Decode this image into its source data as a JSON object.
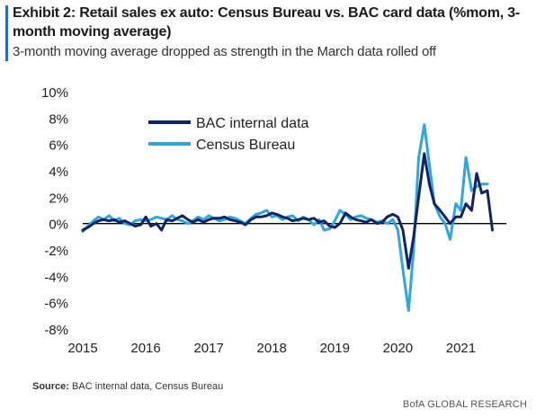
{
  "header": {
    "title": "Exhibit 2: Retail sales ex auto: Census Bureau vs. BAC card data (%mom, 3-month moving average)",
    "subtitle": "3-month moving average dropped as strength in the March data rolled off"
  },
  "footer": {
    "source_label": "Source:",
    "source_text": "BAC internal data, Census  Bureau",
    "brand": "BofA GLOBAL RESEARCH"
  },
  "colors": {
    "accent": "#1f6fd1",
    "bac": "#0d2566",
    "census": "#2fa6df"
  },
  "chart_data": {
    "type": "line",
    "ylim": [
      -8,
      10
    ],
    "yticks": [
      -8,
      -6,
      -4,
      -2,
      0,
      2,
      4,
      6,
      8,
      10
    ],
    "ytick_labels": [
      "-8%",
      "-6%",
      "-4%",
      "-2%",
      "0%",
      "2%",
      "4%",
      "6%",
      "8%",
      "10%"
    ],
    "xlim": [
      2015.0,
      2021.75
    ],
    "xticks": [
      2015,
      2016,
      2017,
      2018,
      2019,
      2020,
      2021
    ],
    "xtick_labels": [
      "2015",
      "2016",
      "2017",
      "2018",
      "2019",
      "2020",
      "2021"
    ],
    "legend_position": "top-left",
    "series": [
      {
        "name": "BAC internal data",
        "color": "#0d2566",
        "x": [
          2015.0,
          2015.08,
          2015.17,
          2015.25,
          2015.33,
          2015.42,
          2015.5,
          2015.58,
          2015.67,
          2015.75,
          2015.83,
          2015.92,
          2016.0,
          2016.08,
          2016.17,
          2016.25,
          2016.33,
          2016.42,
          2016.5,
          2016.58,
          2016.67,
          2016.75,
          2016.83,
          2016.92,
          2017.0,
          2017.08,
          2017.17,
          2017.25,
          2017.33,
          2017.42,
          2017.5,
          2017.58,
          2017.67,
          2017.75,
          2017.83,
          2017.92,
          2018.0,
          2018.08,
          2018.17,
          2018.25,
          2018.33,
          2018.42,
          2018.5,
          2018.58,
          2018.67,
          2018.75,
          2018.83,
          2018.92,
          2019.0,
          2019.08,
          2019.17,
          2019.25,
          2019.33,
          2019.42,
          2019.5,
          2019.58,
          2019.67,
          2019.75,
          2019.83,
          2019.92,
          2020.0,
          2020.08,
          2020.17,
          2020.25,
          2020.33,
          2020.42,
          2020.5,
          2020.58,
          2020.67,
          2020.75,
          2020.83,
          2020.92,
          2021.0,
          2021.08,
          2021.17,
          2021.25,
          2021.33,
          2021.42,
          2021.5
        ],
        "values": [
          -0.5,
          -0.3,
          0.0,
          0.2,
          0.3,
          0.2,
          0.3,
          0.1,
          0.2,
          0.0,
          -0.2,
          -0.1,
          0.5,
          -0.2,
          0.0,
          -0.5,
          0.3,
          0.2,
          0.4,
          0.6,
          0.3,
          0.1,
          0.3,
          0.1,
          0.3,
          0.4,
          0.4,
          0.5,
          0.3,
          0.2,
          0.1,
          -0.1,
          0.3,
          0.5,
          0.5,
          0.6,
          0.8,
          0.7,
          0.5,
          0.4,
          0.2,
          0.3,
          0.4,
          0.3,
          0.4,
          0.1,
          0.2,
          -0.2,
          -0.3,
          0.0,
          0.8,
          0.5,
          0.3,
          0.2,
          0.1,
          0.3,
          0.0,
          0.1,
          0.5,
          0.7,
          0.5,
          -0.5,
          -3.4,
          -1.0,
          2.0,
          5.3,
          3.0,
          1.5,
          1.0,
          0.5,
          0.0,
          0.5,
          0.5,
          1.5,
          1.0,
          3.8,
          2.3,
          2.5,
          -0.5
        ]
      },
      {
        "name": "Census Bureau",
        "color": "#2fa6df",
        "x": [
          2015.0,
          2015.08,
          2015.17,
          2015.25,
          2015.33,
          2015.42,
          2015.5,
          2015.58,
          2015.67,
          2015.75,
          2015.83,
          2015.92,
          2016.0,
          2016.08,
          2016.17,
          2016.25,
          2016.33,
          2016.42,
          2016.5,
          2016.58,
          2016.67,
          2016.75,
          2016.83,
          2016.92,
          2017.0,
          2017.08,
          2017.17,
          2017.25,
          2017.33,
          2017.42,
          2017.5,
          2017.58,
          2017.67,
          2017.75,
          2017.83,
          2017.92,
          2018.0,
          2018.08,
          2018.17,
          2018.25,
          2018.33,
          2018.42,
          2018.5,
          2018.58,
          2018.67,
          2018.75,
          2018.83,
          2018.92,
          2019.0,
          2019.08,
          2019.17,
          2019.25,
          2019.33,
          2019.42,
          2019.5,
          2019.58,
          2019.67,
          2019.75,
          2019.83,
          2019.92,
          2020.0,
          2020.08,
          2020.17,
          2020.25,
          2020.33,
          2020.42,
          2020.5,
          2020.58,
          2020.67,
          2020.75,
          2020.83,
          2020.92,
          2021.0,
          2021.08,
          2021.17,
          2021.25,
          2021.33,
          2021.42
        ],
        "values": [
          -0.6,
          -0.2,
          0.2,
          0.5,
          0.3,
          0.6,
          0.2,
          0.4,
          0.0,
          -0.1,
          0.2,
          0.3,
          0.2,
          0.3,
          0.5,
          0.4,
          0.3,
          0.6,
          0.3,
          0.2,
          0.0,
          0.2,
          0.5,
          0.3,
          0.6,
          0.4,
          0.2,
          0.3,
          0.5,
          0.4,
          0.2,
          0.0,
          0.4,
          0.7,
          0.8,
          1.0,
          0.5,
          0.6,
          0.3,
          0.5,
          0.6,
          0.2,
          0.5,
          0.3,
          -0.1,
          0.3,
          -0.5,
          -0.4,
          0.2,
          1.0,
          0.7,
          0.3,
          0.5,
          0.6,
          0.4,
          0.3,
          0.1,
          0.2,
          0.0,
          0.3,
          -0.5,
          -3.5,
          -6.6,
          -2.0,
          5.0,
          7.5,
          4.5,
          1.5,
          0.5,
          0.0,
          -1.2,
          1.5,
          1.0,
          5.0,
          2.5,
          2.8,
          3.0,
          3.0
        ]
      }
    ]
  }
}
